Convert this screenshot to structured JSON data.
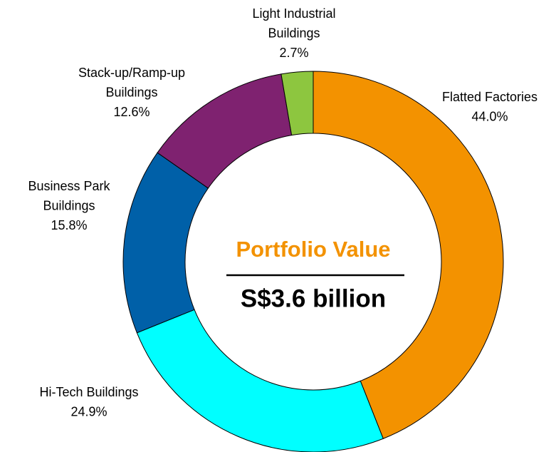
{
  "chart_data": {
    "type": "donut",
    "center_title": "Portfolio Value",
    "center_subtitle": "S$3.6 billion",
    "categories": [
      [
        "Flatted Factories"
      ],
      [
        "Hi-Tech Buildings"
      ],
      [
        "Business Park",
        "Buildings"
      ],
      [
        "Stack-up/Ramp-up",
        "Buildings"
      ],
      [
        "Light Industrial",
        "Buildings"
      ]
    ],
    "values": [
      44.0,
      24.9,
      15.8,
      12.6,
      2.7
    ],
    "value_labels": [
      "44.0%",
      "24.9%",
      "15.8%",
      "12.6%",
      "2.7%"
    ],
    "colors": [
      "#f39200",
      "#00ffff",
      "#0060a8",
      "#7f2270",
      "#8dc63f"
    ]
  }
}
